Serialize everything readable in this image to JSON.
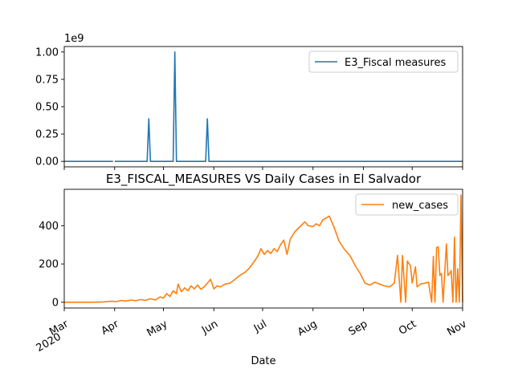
{
  "chart_data": [
    {
      "type": "line",
      "title": "",
      "xlabel": "",
      "ylabel": "",
      "offset_label": "1e9",
      "ylim": [
        -0.05,
        1.05
      ],
      "yticks": [
        0.0,
        0.25,
        0.5,
        0.75,
        1.0
      ],
      "ytick_labels": [
        "0.00",
        "0.25",
        "0.50",
        "0.75",
        "1.00"
      ],
      "color": "#1f77b4",
      "legend_location": "upper right",
      "series": [
        {
          "name": "E3_Fiscal measures",
          "segments": [
            [
              [
                "2020-03-01",
                0
              ],
              [
                "2020-03-31",
                0
              ]
            ],
            [
              [
                "2020-04-01",
                0
              ],
              [
                "2020-04-21",
                0
              ],
              [
                "2020-04-22",
                0.39
              ],
              [
                "2020-04-23",
                0
              ],
              [
                "2020-05-07",
                0
              ],
              [
                "2020-05-08",
                1.0
              ],
              [
                "2020-05-09",
                0
              ],
              [
                "2020-05-27",
                0
              ],
              [
                "2020-05-28",
                0.39
              ],
              [
                "2020-05-29",
                0
              ],
              [
                "2020-11-01",
                0
              ]
            ]
          ]
        }
      ]
    },
    {
      "type": "line",
      "title": "E3_FISCAL_MEASURES VS Daily Cases in El Salvador",
      "xlabel": "Date",
      "ylabel": "",
      "ylim": [
        -30,
        590
      ],
      "yticks": [
        0,
        200,
        400
      ],
      "ytick_labels": [
        "0",
        "200",
        "400"
      ],
      "color": "#ff7f0e",
      "legend_location": "upper right",
      "x_tick_labels": [
        {
          "date": "2020-03-01",
          "label": "Mar",
          "year": "2020"
        },
        {
          "date": "2020-04-01",
          "label": "Apr"
        },
        {
          "date": "2020-05-01",
          "label": "May"
        },
        {
          "date": "2020-06-01",
          "label": "Jun"
        },
        {
          "date": "2020-07-01",
          "label": "Jul"
        },
        {
          "date": "2020-08-01",
          "label": "Aug"
        },
        {
          "date": "2020-09-01",
          "label": "Sep"
        },
        {
          "date": "2020-10-01",
          "label": "Oct"
        },
        {
          "date": "2020-11-01",
          "label": "Nov"
        }
      ],
      "xlim": [
        "2020-03-01",
        "2020-11-01"
      ],
      "series": [
        {
          "name": "new_cases",
          "points": [
            [
              "2020-03-01",
              0
            ],
            [
              "2020-03-18",
              0
            ],
            [
              "2020-03-25",
              2
            ],
            [
              "2020-03-30",
              5
            ],
            [
              "2020-04-02",
              3
            ],
            [
              "2020-04-05",
              10
            ],
            [
              "2020-04-08",
              6
            ],
            [
              "2020-04-11",
              12
            ],
            [
              "2020-04-14",
              8
            ],
            [
              "2020-04-17",
              14
            ],
            [
              "2020-04-20",
              10
            ],
            [
              "2020-04-23",
              18
            ],
            [
              "2020-04-26",
              12
            ],
            [
              "2020-04-29",
              28
            ],
            [
              "2020-05-01",
              22
            ],
            [
              "2020-05-03",
              45
            ],
            [
              "2020-05-05",
              30
            ],
            [
              "2020-05-07",
              60
            ],
            [
              "2020-05-09",
              45
            ],
            [
              "2020-05-10",
              95
            ],
            [
              "2020-05-12",
              55
            ],
            [
              "2020-05-14",
              75
            ],
            [
              "2020-05-16",
              60
            ],
            [
              "2020-05-18",
              85
            ],
            [
              "2020-05-20",
              70
            ],
            [
              "2020-05-22",
              90
            ],
            [
              "2020-05-24",
              68
            ],
            [
              "2020-05-26",
              80
            ],
            [
              "2020-05-28",
              100
            ],
            [
              "2020-05-30",
              120
            ],
            [
              "2020-06-01",
              70
            ],
            [
              "2020-06-03",
              85
            ],
            [
              "2020-06-05",
              80
            ],
            [
              "2020-06-08",
              95
            ],
            [
              "2020-06-11",
              100
            ],
            [
              "2020-06-14",
              120
            ],
            [
              "2020-06-17",
              140
            ],
            [
              "2020-06-20",
              155
            ],
            [
              "2020-06-23",
              180
            ],
            [
              "2020-06-26",
              215
            ],
            [
              "2020-06-28",
              240
            ],
            [
              "2020-06-30",
              280
            ],
            [
              "2020-07-02",
              250
            ],
            [
              "2020-07-04",
              270
            ],
            [
              "2020-07-06",
              255
            ],
            [
              "2020-07-08",
              280
            ],
            [
              "2020-07-10",
              265
            ],
            [
              "2020-07-12",
              300
            ],
            [
              "2020-07-14",
              325
            ],
            [
              "2020-07-16",
              250
            ],
            [
              "2020-07-18",
              330
            ],
            [
              "2020-07-21",
              370
            ],
            [
              "2020-07-24",
              395
            ],
            [
              "2020-07-27",
              420
            ],
            [
              "2020-07-29",
              400
            ],
            [
              "2020-08-01",
              395
            ],
            [
              "2020-08-03",
              410
            ],
            [
              "2020-08-05",
              400
            ],
            [
              "2020-08-07",
              430
            ],
            [
              "2020-08-09",
              440
            ],
            [
              "2020-08-11",
              450
            ],
            [
              "2020-08-14",
              390
            ],
            [
              "2020-08-17",
              320
            ],
            [
              "2020-08-20",
              280
            ],
            [
              "2020-08-24",
              240
            ],
            [
              "2020-08-27",
              190
            ],
            [
              "2020-08-30",
              150
            ],
            [
              "2020-09-02",
              100
            ],
            [
              "2020-09-05",
              90
            ],
            [
              "2020-09-08",
              105
            ],
            [
              "2020-09-11",
              95
            ],
            [
              "2020-09-14",
              85
            ],
            [
              "2020-09-17",
              80
            ],
            [
              "2020-09-20",
              100
            ],
            [
              "2020-09-22",
              245
            ],
            [
              "2020-09-24",
              0
            ],
            [
              "2020-09-25",
              245
            ],
            [
              "2020-09-27",
              0
            ],
            [
              "2020-09-28",
              215
            ],
            [
              "2020-09-30",
              190
            ],
            [
              "2020-10-01",
              100
            ],
            [
              "2020-10-03",
              185
            ],
            [
              "2020-10-04",
              80
            ],
            [
              "2020-10-06",
              95
            ],
            [
              "2020-10-09",
              100
            ],
            [
              "2020-10-11",
              105
            ],
            [
              "2020-10-13",
              0
            ],
            [
              "2020-10-14",
              240
            ],
            [
              "2020-10-15",
              0
            ],
            [
              "2020-10-16",
              285
            ],
            [
              "2020-10-17",
              290
            ],
            [
              "2020-10-18",
              140
            ],
            [
              "2020-10-19",
              150
            ],
            [
              "2020-10-20",
              0
            ],
            [
              "2020-10-22",
              305
            ],
            [
              "2020-10-23",
              140
            ],
            [
              "2020-10-24",
              150
            ],
            [
              "2020-10-25",
              165
            ],
            [
              "2020-10-26",
              0
            ],
            [
              "2020-10-27",
              340
            ],
            [
              "2020-10-28",
              0
            ],
            [
              "2020-10-29",
              175
            ],
            [
              "2020-10-30",
              0
            ],
            [
              "2020-10-31",
              560
            ],
            [
              "2020-11-01",
              0
            ]
          ]
        }
      ]
    }
  ]
}
